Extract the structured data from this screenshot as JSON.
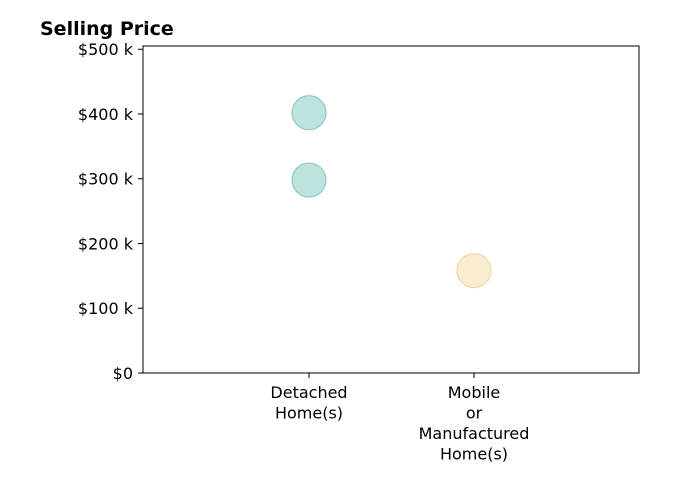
{
  "chart_data": {
    "type": "scatter",
    "title": "Selling Price",
    "xlabel": "",
    "ylabel": "",
    "categories": [
      [
        "Detached",
        "Home(s)"
      ],
      [
        "Mobile",
        "or",
        "Manufactured",
        "Home(s)"
      ]
    ],
    "y_ticks": [
      {
        "value": 0,
        "label": "$0"
      },
      {
        "value": 100000,
        "label": "$100 k"
      },
      {
        "value": 200000,
        "label": "$200 k"
      },
      {
        "value": 300000,
        "label": "$300 k"
      },
      {
        "value": 400000,
        "label": "$400 k"
      },
      {
        "value": 500000,
        "label": "$500 k"
      }
    ],
    "ylim": [
      0,
      505000
    ],
    "grid": false,
    "points": [
      {
        "category": 0,
        "y": 402000,
        "color": "#a8d8d3"
      },
      {
        "category": 0,
        "y": 298000,
        "color": "#a8d8d3"
      },
      {
        "category": 1,
        "y": 158000,
        "color": "#f7e6c0"
      }
    ]
  }
}
